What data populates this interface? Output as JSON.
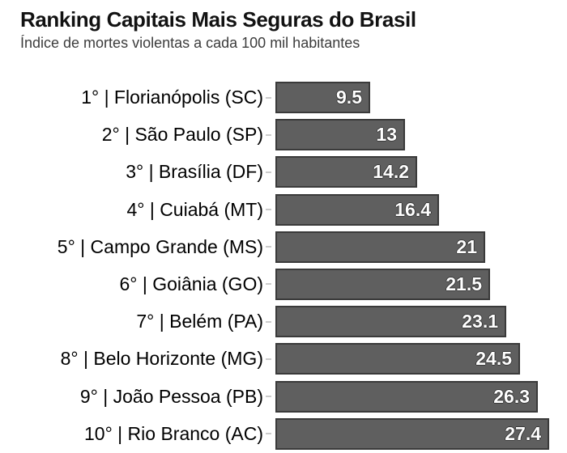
{
  "chart_data": {
    "type": "bar",
    "orientation": "horizontal",
    "title": "Ranking Capitais Mais Seguras do Brasil",
    "subtitle": "Índice de mortes violentas a cada 100 mil habitantes",
    "categories": [
      "1° | Florianópolis (SC)",
      "2° | São Paulo (SP)",
      "3° | Brasília (DF)",
      "4° | Cuiabá (MT)",
      "5° | Campo Grande (MS)",
      "6° | Goiânia (GO)",
      "7° | Belém (PA)",
      "8° | Belo Horizonte (MG)",
      "9° | João Pessoa (PB)",
      "10° | Rio Branco (AC)"
    ],
    "values": [
      9.5,
      13,
      14.2,
      16.4,
      21,
      21.5,
      23.1,
      24.5,
      26.3,
      27.4
    ],
    "value_labels": [
      "9.5",
      "13",
      "14.2",
      "16.4",
      "21",
      "21.5",
      "23.1",
      "24.5",
      "26.3",
      "27.4"
    ],
    "xlim": [
      0,
      27.4
    ],
    "grid": false,
    "legend": "none",
    "bar_color": "#5f5f5f",
    "bar_border_color": "#3a3a3a",
    "value_label_color": "#ffffff",
    "category_label_color": "#000000",
    "title_color": "#121212",
    "subtitle_color": "#3c3c3c"
  }
}
